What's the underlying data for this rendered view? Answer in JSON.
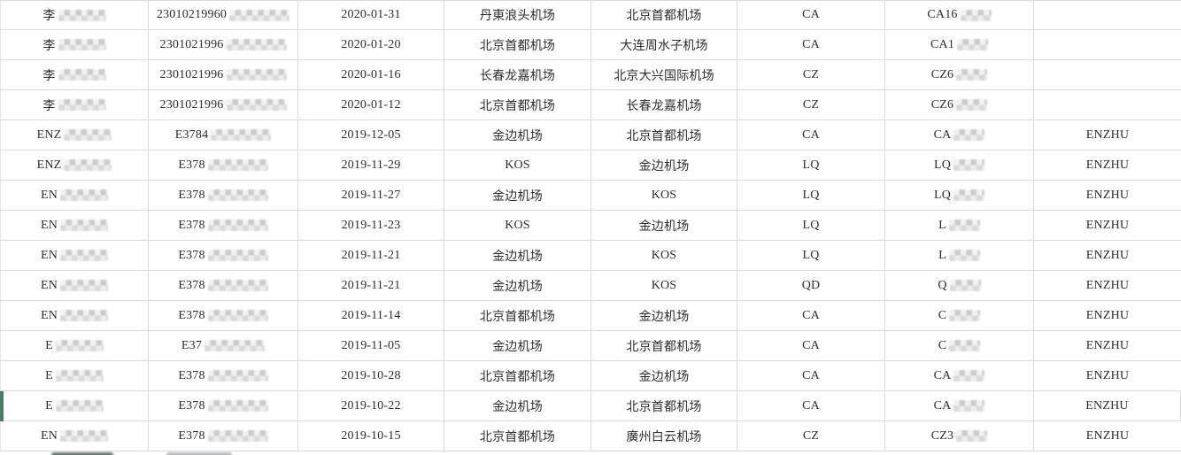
{
  "app": {
    "description_label": "flight-records-table"
  },
  "colors": {
    "accent_green": "#4a7d63",
    "gridline": "#dadada",
    "text": "#2e2e2e",
    "mask_light": "#ececec",
    "mask_dark": "#c9c9c9"
  },
  "table": {
    "rows": [
      {
        "name_prefix": "李",
        "name_masked": true,
        "id_prefix": "23010219960",
        "id_masked": true,
        "date": "2020-01-31",
        "from": "丹東浪头机场",
        "to": "北京首都机场",
        "airline": "CA",
        "flight_prefix": "CA16",
        "flight_masked": true,
        "passenger": "",
        "marked": false
      },
      {
        "name_prefix": "李",
        "name_masked": true,
        "id_prefix": "2301021996",
        "id_masked": true,
        "date": "2020-01-20",
        "from": "北京首都机场",
        "to": "大连周水子机场",
        "airline": "CA",
        "flight_prefix": "CA1",
        "flight_masked": true,
        "passenger": "",
        "marked": false
      },
      {
        "name_prefix": "李",
        "name_masked": true,
        "id_prefix": "2301021996",
        "id_masked": true,
        "date": "2020-01-16",
        "from": "长春龙嘉机场",
        "to": "北京大兴国际机场",
        "airline": "CZ",
        "flight_prefix": "CZ6",
        "flight_masked": true,
        "passenger": "",
        "marked": false
      },
      {
        "name_prefix": "李",
        "name_masked": true,
        "id_prefix": "2301021996",
        "id_masked": true,
        "date": "2020-01-12",
        "from": "北京首都机场",
        "to": "长春龙嘉机场",
        "airline": "CZ",
        "flight_prefix": "CZ6",
        "flight_masked": true,
        "passenger": "",
        "marked": false
      },
      {
        "name_prefix": "ENZ",
        "name_masked": true,
        "id_prefix": "E3784",
        "id_masked": true,
        "date": "2019-12-05",
        "from": "金边机场",
        "to": "北京首都机场",
        "airline": "CA",
        "flight_prefix": "CA",
        "flight_masked": true,
        "passenger": "ENZHU",
        "marked": false
      },
      {
        "name_prefix": "ENZ",
        "name_masked": true,
        "id_prefix": "E378",
        "id_masked": true,
        "date": "2019-11-29",
        "from": "KOS",
        "to": "金边机场",
        "airline": "LQ",
        "flight_prefix": "LQ",
        "flight_masked": true,
        "passenger": "ENZHU",
        "marked": false
      },
      {
        "name_prefix": "EN",
        "name_masked": true,
        "id_prefix": "E378",
        "id_masked": true,
        "date": "2019-11-27",
        "from": "金边机场",
        "to": "KOS",
        "airline": "LQ",
        "flight_prefix": "LQ",
        "flight_masked": true,
        "passenger": "ENZHU",
        "marked": false
      },
      {
        "name_prefix": "EN",
        "name_masked": true,
        "id_prefix": "E378",
        "id_masked": true,
        "date": "2019-11-23",
        "from": "KOS",
        "to": "金边机场",
        "airline": "LQ",
        "flight_prefix": "L",
        "flight_masked": true,
        "passenger": "ENZHU",
        "marked": false
      },
      {
        "name_prefix": "EN",
        "name_masked": true,
        "id_prefix": "E378",
        "id_masked": true,
        "date": "2019-11-21",
        "from": "金边机场",
        "to": "KOS",
        "airline": "LQ",
        "flight_prefix": "L",
        "flight_masked": true,
        "passenger": "ENZHU",
        "marked": false
      },
      {
        "name_prefix": "EN",
        "name_masked": true,
        "id_prefix": "E378",
        "id_masked": true,
        "date": "2019-11-21",
        "from": "金边机场",
        "to": "KOS",
        "airline": "QD",
        "flight_prefix": "Q",
        "flight_masked": true,
        "passenger": "ENZHU",
        "marked": false
      },
      {
        "name_prefix": "EN",
        "name_masked": true,
        "id_prefix": "E378",
        "id_masked": true,
        "date": "2019-11-14",
        "from": "北京首都机场",
        "to": "金边机场",
        "airline": "CA",
        "flight_prefix": "C",
        "flight_masked": true,
        "passenger": "ENZHU",
        "marked": false
      },
      {
        "name_prefix": "E",
        "name_masked": true,
        "id_prefix": "E37",
        "id_masked": true,
        "date": "2019-11-05",
        "from": "金边机场",
        "to": "北京首都机场",
        "airline": "CA",
        "flight_prefix": "C",
        "flight_masked": true,
        "passenger": "ENZHU",
        "marked": false
      },
      {
        "name_prefix": "E",
        "name_masked": true,
        "id_prefix": "E378",
        "id_masked": true,
        "date": "2019-10-28",
        "from": "北京首都机场",
        "to": "金边机场",
        "airline": "CA",
        "flight_prefix": "CA",
        "flight_masked": true,
        "passenger": "ENZHU",
        "marked": false
      },
      {
        "name_prefix": "E",
        "name_masked": true,
        "id_prefix": "E378",
        "id_masked": true,
        "date": "2019-10-22",
        "from": "金边机场",
        "to": "北京首都机场",
        "airline": "CA",
        "flight_prefix": "CA",
        "flight_masked": true,
        "passenger": "ENZHU",
        "marked": true
      },
      {
        "name_prefix": "EN",
        "name_masked": true,
        "id_prefix": "E378",
        "id_masked": true,
        "date": "2019-10-15",
        "from": "北京首都机场",
        "to": "廣州白云机场",
        "airline": "CZ",
        "flight_prefix": "CZ3",
        "flight_masked": true,
        "passenger": "ENZHU",
        "marked": false
      }
    ],
    "partial_next_row": {
      "name_masked": true,
      "id_masked": true
    }
  }
}
